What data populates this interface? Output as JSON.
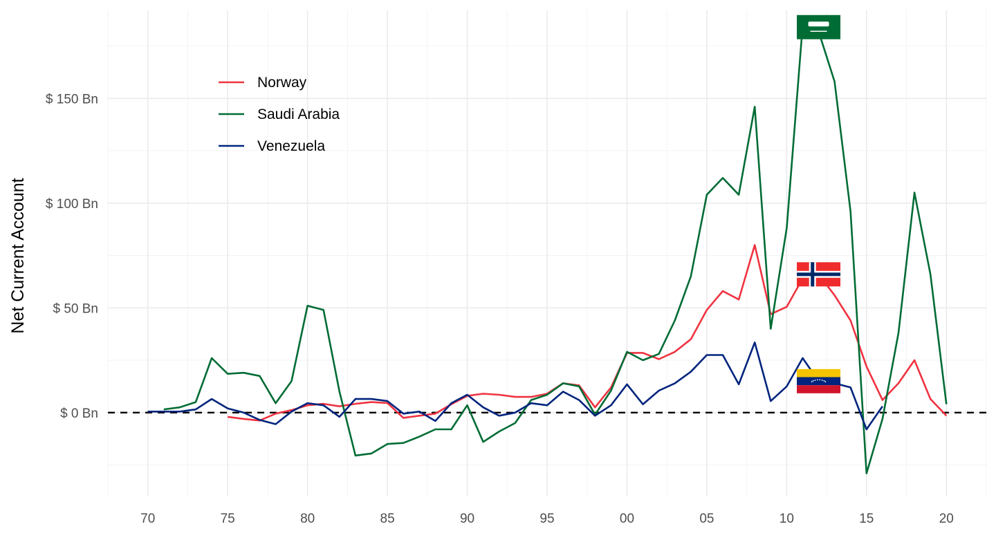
{
  "chart_data": {
    "type": "line",
    "ylabel": "Net Current Account",
    "xlabel": "",
    "xlim": [
      1967.5,
      2022.5
    ],
    "ylim": [
      -40,
      192
    ],
    "x_ticks": [
      1970,
      1975,
      1980,
      1985,
      1990,
      1995,
      2000,
      2005,
      2010,
      2015,
      2020
    ],
    "x_tick_labels": [
      "70",
      "75",
      "80",
      "85",
      "90",
      "95",
      "00",
      "05",
      "10",
      "15",
      "20"
    ],
    "y_ticks": [
      0,
      50,
      100,
      150
    ],
    "y_tick_labels": [
      "$ 0 Bn",
      "$ 50 Bn",
      "$ 100 Bn",
      "$ 150 Bn"
    ],
    "reference_line": {
      "y": 0,
      "style": "dashed",
      "color": "#000000"
    },
    "grid": true,
    "legend_position": "top-left",
    "series": [
      {
        "name": "Norway",
        "color": "#ef3340",
        "flag_icon": "norway-flag-icon",
        "flag_at": [
          2012,
          66
        ],
        "x": [
          1975,
          1976,
          1977,
          1978,
          1979,
          1980,
          1981,
          1982,
          1983,
          1984,
          1985,
          1986,
          1987,
          1988,
          1989,
          1990,
          1991,
          1992,
          1993,
          1994,
          1995,
          1996,
          1997,
          1998,
          1999,
          2000,
          2001,
          2002,
          2003,
          2004,
          2005,
          2006,
          2007,
          2008,
          2009,
          2010,
          2011,
          2012,
          2013,
          2014,
          2015,
          2016,
          2017,
          2018,
          2019,
          2020
        ],
        "y": [
          -2,
          -3,
          -3.8,
          -0.5,
          1.2,
          3.5,
          4.2,
          3,
          4.2,
          5,
          4.6,
          -2.5,
          -1.5,
          -0.5,
          4,
          8,
          9,
          8.5,
          7.5,
          7.5,
          9,
          14,
          13,
          2.5,
          12,
          28.5,
          28.5,
          25.5,
          29,
          35,
          49,
          58,
          54,
          80,
          47,
          50.5,
          64,
          66,
          56,
          44,
          22,
          6,
          14,
          25,
          6.5,
          -1.5
        ]
      },
      {
        "name": "Saudi Arabia",
        "color": "#006c35",
        "flag_icon": "saudi-arabia-flag-icon",
        "flag_at": [
          2012,
          184
        ],
        "x": [
          1971,
          1972,
          1973,
          1974,
          1975,
          1976,
          1977,
          1978,
          1979,
          1980,
          1981,
          1982,
          1983,
          1984,
          1985,
          1986,
          1987,
          1988,
          1989,
          1990,
          1991,
          1992,
          1993,
          1994,
          1995,
          1996,
          1997,
          1998,
          1999,
          2000,
          2001,
          2002,
          2003,
          2004,
          2005,
          2006,
          2007,
          2008,
          2009,
          2010,
          2011,
          2012,
          2013,
          2014,
          2015,
          2016,
          2017,
          2018,
          2019,
          2020
        ],
        "y": [
          1.5,
          2.5,
          5,
          26,
          18.5,
          19,
          17.5,
          4.5,
          15,
          51,
          49,
          10,
          -20.5,
          -19.5,
          -15,
          -14.5,
          -11.5,
          -8,
          -8,
          3.5,
          -14,
          -9,
          -5,
          6,
          8.5,
          14,
          12.5,
          -1,
          10.5,
          29,
          25,
          28,
          44,
          65,
          104,
          112,
          104,
          146,
          40,
          88,
          185,
          182,
          158,
          96,
          -29,
          -3,
          38,
          105,
          66,
          4
        ]
      },
      {
        "name": "Venezuela",
        "color": "#00247d",
        "flag_icon": "venezuela-flag-icon",
        "flag_at": [
          2012,
          15
        ],
        "x": [
          1970,
          1971,
          1972,
          1973,
          1974,
          1975,
          1976,
          1977,
          1978,
          1979,
          1980,
          1981,
          1982,
          1983,
          1984,
          1985,
          1986,
          1987,
          1988,
          1989,
          1990,
          1991,
          1992,
          1993,
          1994,
          1995,
          1996,
          1997,
          1998,
          1999,
          2000,
          2001,
          2002,
          2003,
          2004,
          2005,
          2006,
          2007,
          2008,
          2009,
          2010,
          2011,
          2012,
          2013,
          2014,
          2015,
          2016
        ],
        "y": [
          0.5,
          0.5,
          0.5,
          1.5,
          6.5,
          2,
          0,
          -3.5,
          -5.5,
          0.5,
          4.5,
          3.5,
          -2,
          6.5,
          6.5,
          5.5,
          -0.5,
          0.5,
          -4,
          4.5,
          8.5,
          2.5,
          -1.5,
          0,
          4.5,
          3.5,
          10,
          6,
          -1.5,
          3.5,
          13.5,
          4,
          10.5,
          14,
          19.5,
          27.5,
          27.5,
          13.5,
          33.5,
          5.5,
          12.5,
          26,
          15,
          14,
          12,
          -8,
          3
        ]
      }
    ]
  }
}
